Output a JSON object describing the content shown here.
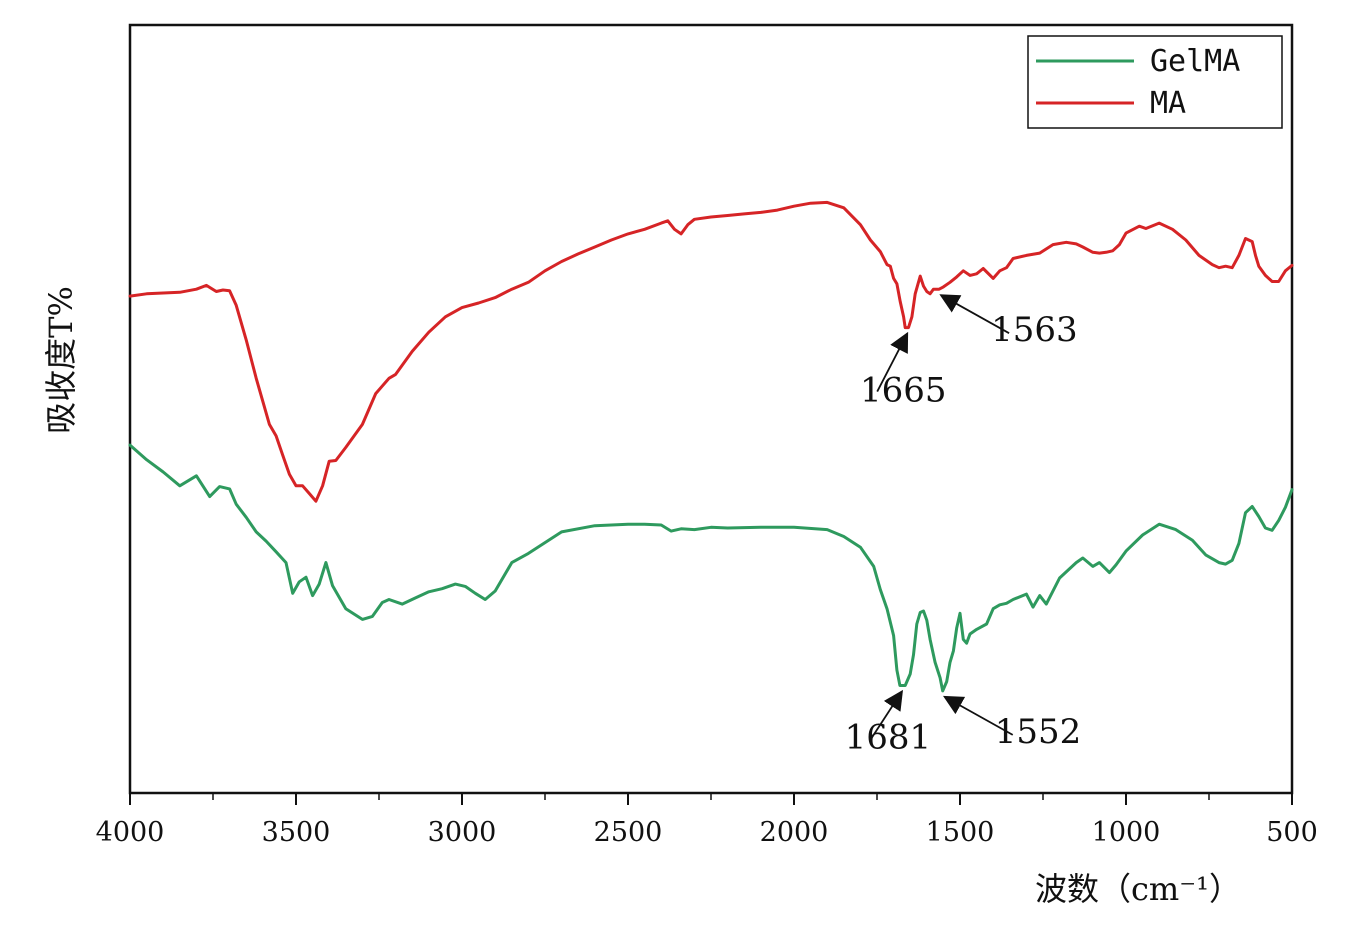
{
  "chart_data": {
    "type": "line",
    "title": "",
    "xlabel": "波数（cm⁻¹）",
    "ylabel": "吸收度T%",
    "xlim": [
      4000,
      500
    ],
    "x_reversed": true,
    "ylim": [
      0,
      100
    ],
    "y_ticks_shown": false,
    "grid": false,
    "legend": "top-right",
    "x_ticks": [
      "4000",
      "3500",
      "3000",
      "2500",
      "2000",
      "1500",
      "1000",
      "500"
    ],
    "series": [
      {
        "name": "GelMA",
        "color": "#2e9a5e",
        "points": [
          [
            4000,
            45.3
          ],
          [
            3950,
            43.4
          ],
          [
            3900,
            41.8
          ],
          [
            3850,
            40.0
          ],
          [
            3800,
            41.3
          ],
          [
            3760,
            38.6
          ],
          [
            3730,
            39.9
          ],
          [
            3700,
            39.6
          ],
          [
            3680,
            37.6
          ],
          [
            3650,
            35.9
          ],
          [
            3620,
            34.0
          ],
          [
            3590,
            32.8
          ],
          [
            3560,
            31.4
          ],
          [
            3530,
            30.0
          ],
          [
            3510,
            26.0
          ],
          [
            3490,
            27.5
          ],
          [
            3470,
            28.1
          ],
          [
            3450,
            25.7
          ],
          [
            3430,
            27.2
          ],
          [
            3410,
            30.0
          ],
          [
            3390,
            27.0
          ],
          [
            3350,
            24.0
          ],
          [
            3300,
            22.6
          ],
          [
            3270,
            23.0
          ],
          [
            3240,
            24.8
          ],
          [
            3220,
            25.2
          ],
          [
            3180,
            24.6
          ],
          [
            3140,
            25.4
          ],
          [
            3100,
            26.2
          ],
          [
            3060,
            26.6
          ],
          [
            3020,
            27.2
          ],
          [
            2990,
            26.9
          ],
          [
            2960,
            26.0
          ],
          [
            2930,
            25.2
          ],
          [
            2900,
            26.3
          ],
          [
            2850,
            30.0
          ],
          [
            2800,
            31.2
          ],
          [
            2700,
            34.0
          ],
          [
            2600,
            34.8
          ],
          [
            2500,
            35.0
          ],
          [
            2450,
            35.0
          ],
          [
            2400,
            34.9
          ],
          [
            2370,
            34.1
          ],
          [
            2340,
            34.4
          ],
          [
            2300,
            34.3
          ],
          [
            2250,
            34.6
          ],
          [
            2200,
            34.5
          ],
          [
            2100,
            34.6
          ],
          [
            2000,
            34.6
          ],
          [
            1900,
            34.3
          ],
          [
            1850,
            33.4
          ],
          [
            1800,
            32.0
          ],
          [
            1760,
            29.5
          ],
          [
            1740,
            26.5
          ],
          [
            1720,
            24.0
          ],
          [
            1700,
            20.5
          ],
          [
            1690,
            16.0
          ],
          [
            1681,
            14.0
          ],
          [
            1665,
            14.0
          ],
          [
            1650,
            15.5
          ],
          [
            1640,
            18.0
          ],
          [
            1630,
            22.0
          ],
          [
            1620,
            23.5
          ],
          [
            1610,
            23.7
          ],
          [
            1600,
            22.5
          ],
          [
            1590,
            20.0
          ],
          [
            1575,
            17.0
          ],
          [
            1560,
            15.0
          ],
          [
            1552,
            13.3
          ],
          [
            1540,
            14.5
          ],
          [
            1530,
            17.0
          ],
          [
            1520,
            18.5
          ],
          [
            1510,
            21.5
          ],
          [
            1500,
            23.4
          ],
          [
            1490,
            20.0
          ],
          [
            1480,
            19.5
          ],
          [
            1470,
            20.7
          ],
          [
            1450,
            21.3
          ],
          [
            1420,
            22.0
          ],
          [
            1400,
            24.0
          ],
          [
            1380,
            24.5
          ],
          [
            1360,
            24.7
          ],
          [
            1340,
            25.2
          ],
          [
            1300,
            25.9
          ],
          [
            1280,
            24.2
          ],
          [
            1260,
            25.7
          ],
          [
            1240,
            24.6
          ],
          [
            1200,
            28.0
          ],
          [
            1150,
            30.0
          ],
          [
            1130,
            30.6
          ],
          [
            1100,
            29.5
          ],
          [
            1080,
            30.0
          ],
          [
            1050,
            28.7
          ],
          [
            1030,
            29.7
          ],
          [
            1000,
            31.5
          ],
          [
            950,
            33.6
          ],
          [
            900,
            35.0
          ],
          [
            850,
            34.3
          ],
          [
            800,
            32.9
          ],
          [
            760,
            31.0
          ],
          [
            720,
            30.0
          ],
          [
            700,
            29.8
          ],
          [
            680,
            30.3
          ],
          [
            660,
            32.5
          ],
          [
            640,
            36.5
          ],
          [
            620,
            37.3
          ],
          [
            600,
            36.0
          ],
          [
            580,
            34.5
          ],
          [
            560,
            34.2
          ],
          [
            540,
            35.5
          ],
          [
            520,
            37.2
          ],
          [
            500,
            39.5
          ]
        ]
      },
      {
        "name": "MA",
        "color": "#d62426",
        "points": [
          [
            4000,
            64.7
          ],
          [
            3950,
            65.0
          ],
          [
            3900,
            65.1
          ],
          [
            3850,
            65.2
          ],
          [
            3800,
            65.6
          ],
          [
            3770,
            66.1
          ],
          [
            3740,
            65.3
          ],
          [
            3720,
            65.5
          ],
          [
            3700,
            65.4
          ],
          [
            3680,
            63.5
          ],
          [
            3650,
            59.0
          ],
          [
            3620,
            54.0
          ],
          [
            3600,
            51.0
          ],
          [
            3580,
            48.0
          ],
          [
            3560,
            46.5
          ],
          [
            3540,
            44.0
          ],
          [
            3520,
            41.5
          ],
          [
            3500,
            40.0
          ],
          [
            3480,
            40.0
          ],
          [
            3460,
            39.0
          ],
          [
            3440,
            38.0
          ],
          [
            3420,
            40.0
          ],
          [
            3400,
            43.2
          ],
          [
            3380,
            43.3
          ],
          [
            3350,
            45.0
          ],
          [
            3300,
            48.0
          ],
          [
            3260,
            52.0
          ],
          [
            3220,
            54.0
          ],
          [
            3200,
            54.5
          ],
          [
            3150,
            57.5
          ],
          [
            3100,
            60.0
          ],
          [
            3050,
            62.0
          ],
          [
            3000,
            63.2
          ],
          [
            2950,
            63.8
          ],
          [
            2900,
            64.5
          ],
          [
            2850,
            65.6
          ],
          [
            2800,
            66.5
          ],
          [
            2750,
            68.0
          ],
          [
            2700,
            69.2
          ],
          [
            2650,
            70.2
          ],
          [
            2600,
            71.1
          ],
          [
            2550,
            72.0
          ],
          [
            2500,
            72.8
          ],
          [
            2450,
            73.4
          ],
          [
            2400,
            74.2
          ],
          [
            2380,
            74.5
          ],
          [
            2360,
            73.4
          ],
          [
            2340,
            72.8
          ],
          [
            2320,
            74.0
          ],
          [
            2300,
            74.7
          ],
          [
            2250,
            75.0
          ],
          [
            2200,
            75.2
          ],
          [
            2150,
            75.4
          ],
          [
            2100,
            75.6
          ],
          [
            2050,
            75.9
          ],
          [
            2000,
            76.4
          ],
          [
            1950,
            76.8
          ],
          [
            1900,
            76.9
          ],
          [
            1850,
            76.2
          ],
          [
            1800,
            74.0
          ],
          [
            1770,
            72.0
          ],
          [
            1740,
            70.5
          ],
          [
            1720,
            68.8
          ],
          [
            1710,
            68.6
          ],
          [
            1700,
            67.0
          ],
          [
            1690,
            66.3
          ],
          [
            1680,
            64.0
          ],
          [
            1670,
            62.0
          ],
          [
            1665,
            60.6
          ],
          [
            1655,
            60.6
          ],
          [
            1645,
            62.0
          ],
          [
            1635,
            65.0
          ],
          [
            1620,
            67.3
          ],
          [
            1610,
            66.0
          ],
          [
            1600,
            65.3
          ],
          [
            1590,
            65.0
          ],
          [
            1580,
            65.6
          ],
          [
            1563,
            65.6
          ],
          [
            1550,
            65.9
          ],
          [
            1530,
            66.5
          ],
          [
            1510,
            67.2
          ],
          [
            1490,
            68.0
          ],
          [
            1470,
            67.4
          ],
          [
            1450,
            67.6
          ],
          [
            1430,
            68.3
          ],
          [
            1400,
            67.0
          ],
          [
            1380,
            68.0
          ],
          [
            1360,
            68.4
          ],
          [
            1340,
            69.6
          ],
          [
            1300,
            70.0
          ],
          [
            1260,
            70.3
          ],
          [
            1220,
            71.4
          ],
          [
            1180,
            71.7
          ],
          [
            1150,
            71.5
          ],
          [
            1130,
            71.1
          ],
          [
            1100,
            70.4
          ],
          [
            1080,
            70.3
          ],
          [
            1060,
            70.4
          ],
          [
            1040,
            70.6
          ],
          [
            1020,
            71.4
          ],
          [
            1000,
            72.9
          ],
          [
            960,
            73.8
          ],
          [
            940,
            73.5
          ],
          [
            900,
            74.2
          ],
          [
            860,
            73.4
          ],
          [
            820,
            72.0
          ],
          [
            780,
            70.0
          ],
          [
            740,
            68.8
          ],
          [
            720,
            68.4
          ],
          [
            700,
            68.6
          ],
          [
            680,
            68.4
          ],
          [
            660,
            70.0
          ],
          [
            640,
            72.2
          ],
          [
            620,
            71.8
          ],
          [
            610,
            70.0
          ],
          [
            600,
            68.6
          ],
          [
            580,
            67.4
          ],
          [
            560,
            66.6
          ],
          [
            540,
            66.6
          ],
          [
            520,
            68.0
          ],
          [
            500,
            68.7
          ]
        ]
      }
    ],
    "annotations": [
      {
        "label": "1665",
        "series": "MA",
        "x": 1665
      },
      {
        "label": "1563",
        "series": "MA",
        "x": 1563
      },
      {
        "label": "1681",
        "series": "GelMA",
        "x": 1681
      },
      {
        "label": "1552",
        "series": "GelMA",
        "x": 1552
      }
    ]
  }
}
